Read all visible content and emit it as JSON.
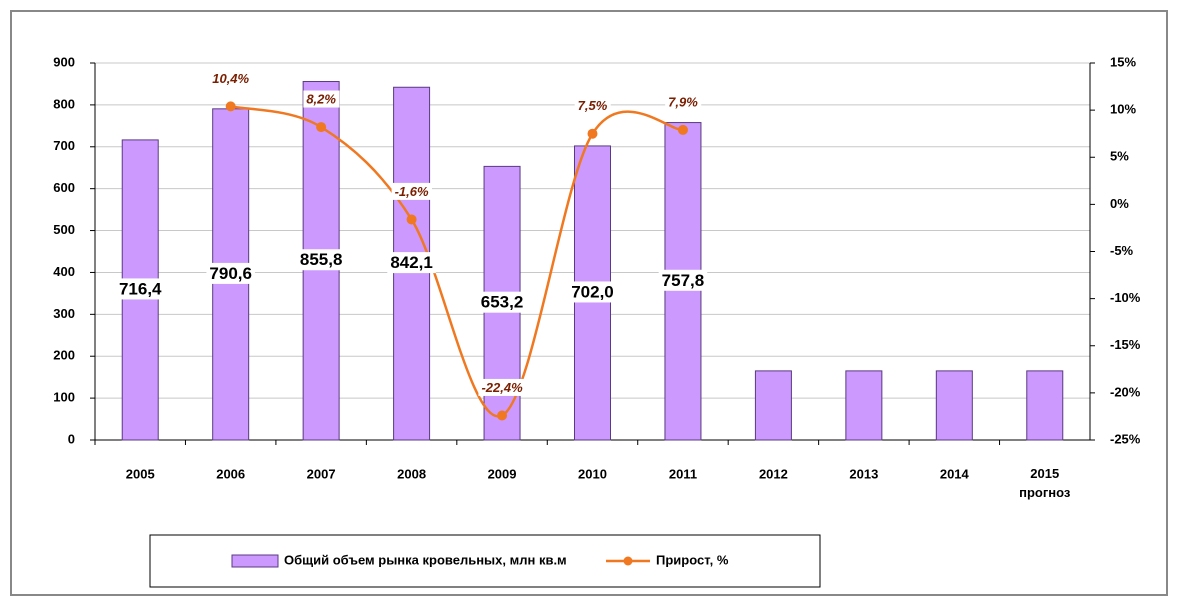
{
  "chart_data": {
    "type": "bar_line",
    "categories": [
      "2005",
      "2006",
      "2007",
      "2008",
      "2009",
      "2010",
      "2011",
      "2012",
      "2013",
      "2014",
      "2015 прогноз"
    ],
    "series": [
      {
        "name": "Общий объем рынка кровельных, млн кв.м",
        "type": "bar",
        "color": "#cc99ff",
        "values": [
          716.4,
          790.6,
          855.8,
          842.1,
          653.2,
          702.0,
          757.8,
          165,
          165,
          165,
          165
        ],
        "value_labels": [
          "716,4",
          "790,6",
          "855,8",
          "842,1",
          "653,2",
          "702,0",
          "757,8",
          null,
          null,
          null,
          null
        ]
      },
      {
        "name": "Прирост, %",
        "type": "line",
        "axis": "y2",
        "color": "#f07820",
        "values": [
          null,
          10.4,
          8.2,
          -1.6,
          -22.4,
          7.5,
          7.9,
          null,
          null,
          null,
          null
        ],
        "value_labels": [
          null,
          "10,4%",
          "8,2%",
          "-1,6%",
          "-22,4%",
          "7,5%",
          "7,9%",
          null,
          null,
          null,
          null
        ]
      }
    ],
    "ylim": [
      0,
      900
    ],
    "yticks": [
      0,
      100,
      200,
      300,
      400,
      500,
      600,
      700,
      800,
      900
    ],
    "y2lim": [
      -25,
      15
    ],
    "y2ticks": [
      {
        "value": -25,
        "label": "-25%"
      },
      {
        "value": -20,
        "label": "-20%"
      },
      {
        "value": -15,
        "label": "-15%"
      },
      {
        "value": -10,
        "label": "-10%"
      },
      {
        "value": -5,
        "label": "-5%"
      },
      {
        "value": 0,
        "label": "0%"
      },
      {
        "value": 5,
        "label": "5%"
      },
      {
        "value": 10,
        "label": "10%"
      },
      {
        "value": 15,
        "label": "15%"
      }
    ],
    "grid": true,
    "legend": "bottom"
  }
}
